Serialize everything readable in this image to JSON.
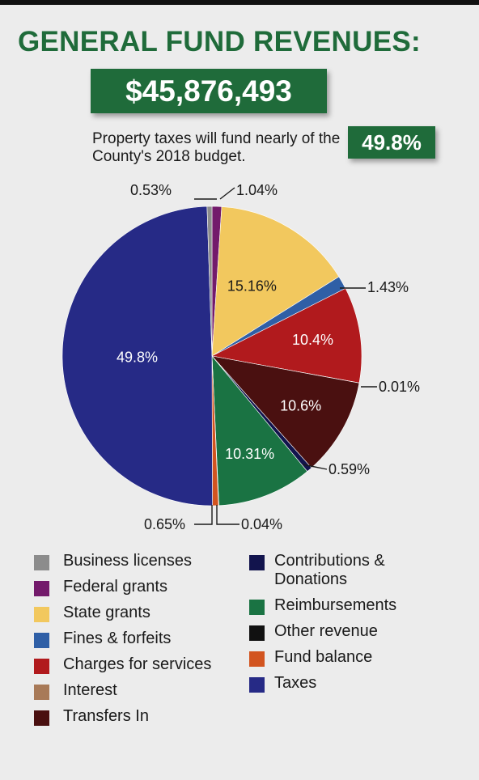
{
  "header": {
    "title": "GENERAL FUND REVENUES:",
    "total": "$45,876,493",
    "subtitle": "Property taxes will fund nearly of the County's 2018 budget.",
    "highlight_pct": "49.8%"
  },
  "colors": {
    "brand_green": "#1f6b3a"
  },
  "chart_data": {
    "type": "pie",
    "title": "GENERAL FUND REVENUES:",
    "start_at": "top, clockwise",
    "slices": [
      {
        "category": "Business licenses",
        "value": 0.0,
        "label": "",
        "color": "#8c8c8c"
      },
      {
        "category": "Federal grants",
        "value": 1.04,
        "label": "1.04%",
        "color": "#731a6b"
      },
      {
        "category": "State grants",
        "value": 15.16,
        "label": "15.16%",
        "color": "#f2c85e"
      },
      {
        "category": "Fines & forfeits",
        "value": 1.43,
        "label": "1.43%",
        "color": "#2f5fa6"
      },
      {
        "category": "Charges for services",
        "value": 10.4,
        "label": "10.4%",
        "color": "#b11a1d"
      },
      {
        "category": "Interest",
        "value": 0.01,
        "label": "0.01%",
        "color": "#a87a58"
      },
      {
        "category": "Transfers In",
        "value": 10.6,
        "label": "10.6%",
        "color": "#4a1010"
      },
      {
        "category": "Contributions & Donations",
        "value": 0.59,
        "label": "0.59%",
        "color": "#12144d"
      },
      {
        "category": "Reimbursements",
        "value": 10.31,
        "label": "10.31%",
        "color": "#1a7343"
      },
      {
        "category": "Other revenue",
        "value": 0.04,
        "label": "0.04%",
        "color": "#111111"
      },
      {
        "category": "Fund balance",
        "value": 0.65,
        "label": "0.65%",
        "color": "#d2541f"
      },
      {
        "category": "Taxes",
        "value": 49.8,
        "label": "49.8%",
        "color": "#262a86"
      },
      {
        "category": "Business licenses",
        "value": 0.53,
        "label": "0.53%",
        "color": "#8c8c8c"
      }
    ]
  },
  "legend": {
    "left": [
      {
        "label": "Business licenses",
        "color": "#8c8c8c"
      },
      {
        "label": "Federal grants",
        "color": "#731a6b"
      },
      {
        "label": "State grants",
        "color": "#f2c85e"
      },
      {
        "label": "Fines & forfeits",
        "color": "#2f5fa6"
      },
      {
        "label": "Charges for services",
        "color": "#b11a1d"
      },
      {
        "label": "Interest",
        "color": "#a87a58"
      },
      {
        "label": "Transfers In",
        "color": "#4a1010"
      }
    ],
    "right": [
      {
        "label": "Contributions & Donations",
        "color": "#12144d"
      },
      {
        "label": "Reimbursements",
        "color": "#1a7343"
      },
      {
        "label": "Other revenue",
        "color": "#111111"
      },
      {
        "label": "Fund balance",
        "color": "#d2541f"
      },
      {
        "label": "Taxes",
        "color": "#262a86"
      }
    ]
  }
}
